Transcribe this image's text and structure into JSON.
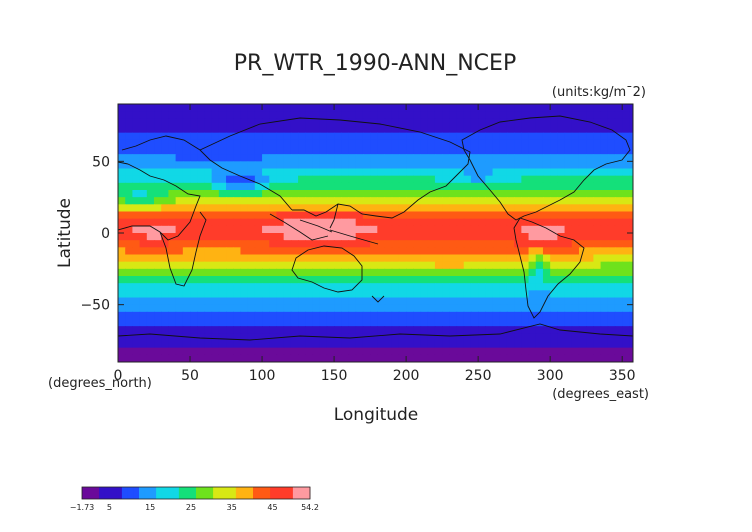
{
  "map": {
    "title": "PR_WTR_1990-ANN_NCEP",
    "units_label": "(units:kg/m¯2)",
    "xlabel": "Longitude",
    "ylabel": "Latitude",
    "x_unit_note": "(degrees_east)",
    "y_unit_note": "(degrees_north)",
    "x_ticks": [
      "0",
      "50",
      "100",
      "150",
      "200",
      "250",
      "300",
      "350"
    ],
    "y_ticks": [
      "50",
      "0",
      "−50"
    ]
  },
  "colorbar": {
    "labels": [
      "−1.73",
      "5",
      "15",
      "25",
      "35",
      "45",
      "54.2"
    ]
  },
  "chart_data": {
    "type": "heatmap",
    "title": "PR_WTR_1990-ANN_NCEP",
    "xlabel": "Longitude",
    "ylabel": "Latitude",
    "xlim": [
      0,
      357.5
    ],
    "ylim": [
      -90,
      90
    ],
    "value_range": [
      -1.73,
      54.2
    ],
    "units": "kg/m^2",
    "colormap": [
      "#6a0a9a",
      "#3310c8",
      "#1f4dff",
      "#1e9bff",
      "#11d8e6",
      "#14e07a",
      "#6ee21c",
      "#d8e814",
      "#ffb312",
      "#ff5a14",
      "#ff3c2a",
      "#ff9aa0"
    ],
    "latitude_band_mean": [
      {
        "lat": 85,
        "value": 3
      },
      {
        "lat": 70,
        "value": 8
      },
      {
        "lat": 55,
        "value": 13
      },
      {
        "lat": 40,
        "value": 20
      },
      {
        "lat": 25,
        "value": 30
      },
      {
        "lat": 10,
        "value": 45
      },
      {
        "lat": 0,
        "value": 48
      },
      {
        "lat": -10,
        "value": 42
      },
      {
        "lat": -25,
        "value": 30
      },
      {
        "lat": -40,
        "value": 18
      },
      {
        "lat": -55,
        "value": 12
      },
      {
        "lat": -70,
        "value": 6
      },
      {
        "lat": -85,
        "value": 1
      }
    ]
  }
}
